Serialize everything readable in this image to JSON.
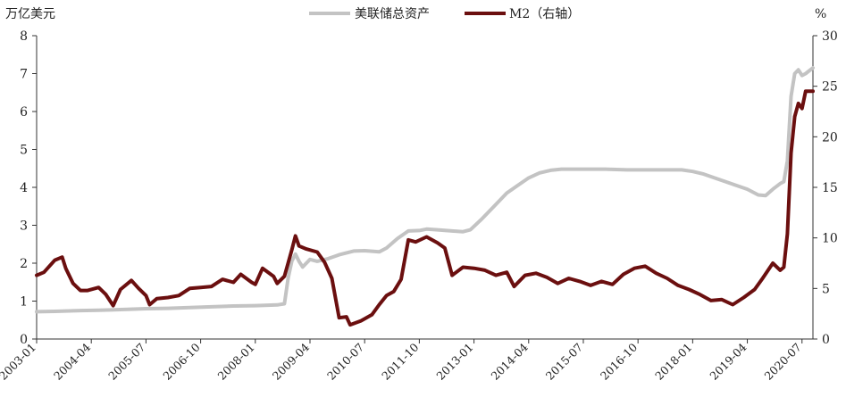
{
  "chart_data": {
    "type": "line",
    "title": "",
    "left_axis": {
      "unit_label": "万亿美元",
      "ylim": [
        0,
        8
      ],
      "ticks": [
        "0",
        "1",
        "2",
        "3",
        "4",
        "5",
        "6",
        "7",
        "8"
      ]
    },
    "right_axis": {
      "unit_label": "%",
      "ylim": [
        0,
        30
      ],
      "ticks": [
        "0",
        "5",
        "10",
        "15",
        "20",
        "25",
        "30"
      ]
    },
    "x_ticks": [
      "2003-01",
      "2004-04",
      "2005-07",
      "2006-10",
      "2008-01",
      "2009-04",
      "2010-07",
      "2011-10",
      "2013-01",
      "2014-04",
      "2015-07",
      "2016-10",
      "2018-01",
      "2019-04",
      "2020-07"
    ],
    "x_range": [
      "2003-01",
      "2020-10"
    ],
    "grid": false,
    "legend_position": "top-center",
    "colors": {
      "fed": "#c3c3c3",
      "m2": "#6b0f0f"
    },
    "series": [
      {
        "name": "美联储总资产",
        "axis": "left",
        "points": [
          [
            "2003-01",
            0.72
          ],
          [
            "2003-06",
            0.73
          ],
          [
            "2004-01",
            0.75
          ],
          [
            "2004-06",
            0.76
          ],
          [
            "2005-01",
            0.78
          ],
          [
            "2005-07",
            0.8
          ],
          [
            "2006-01",
            0.81
          ],
          [
            "2006-07",
            0.83
          ],
          [
            "2007-01",
            0.85
          ],
          [
            "2007-07",
            0.87
          ],
          [
            "2008-01",
            0.88
          ],
          [
            "2008-07",
            0.9
          ],
          [
            "2008-09",
            0.93
          ],
          [
            "2008-10",
            1.6
          ],
          [
            "2008-11",
            2.05
          ],
          [
            "2008-12",
            2.24
          ],
          [
            "2009-01",
            2.05
          ],
          [
            "2009-02",
            1.9
          ],
          [
            "2009-03",
            2.0
          ],
          [
            "2009-04",
            2.1
          ],
          [
            "2009-06",
            2.05
          ],
          [
            "2009-09",
            2.12
          ],
          [
            "2009-12",
            2.22
          ],
          [
            "2010-04",
            2.32
          ],
          [
            "2010-07",
            2.33
          ],
          [
            "2010-11",
            2.3
          ],
          [
            "2011-01",
            2.4
          ],
          [
            "2011-04",
            2.65
          ],
          [
            "2011-07",
            2.85
          ],
          [
            "2011-10",
            2.86
          ],
          [
            "2011-12",
            2.9
          ],
          [
            "2012-03",
            2.88
          ],
          [
            "2012-07",
            2.85
          ],
          [
            "2012-10",
            2.83
          ],
          [
            "2012-12",
            2.88
          ],
          [
            "2013-03",
            3.15
          ],
          [
            "2013-07",
            3.55
          ],
          [
            "2013-10",
            3.85
          ],
          [
            "2014-01",
            4.05
          ],
          [
            "2014-04",
            4.25
          ],
          [
            "2014-07",
            4.38
          ],
          [
            "2014-10",
            4.45
          ],
          [
            "2015-01",
            4.48
          ],
          [
            "2015-07",
            4.48
          ],
          [
            "2016-01",
            4.48
          ],
          [
            "2016-07",
            4.46
          ],
          [
            "2017-01",
            4.46
          ],
          [
            "2017-07",
            4.46
          ],
          [
            "2017-10",
            4.46
          ],
          [
            "2018-01",
            4.42
          ],
          [
            "2018-04",
            4.35
          ],
          [
            "2018-07",
            4.25
          ],
          [
            "2018-10",
            4.15
          ],
          [
            "2019-01",
            4.05
          ],
          [
            "2019-04",
            3.95
          ],
          [
            "2019-07",
            3.8
          ],
          [
            "2019-09",
            3.78
          ],
          [
            "2019-11",
            3.95
          ],
          [
            "2020-01",
            4.1
          ],
          [
            "2020-02",
            4.15
          ],
          [
            "2020-03",
            4.7
          ],
          [
            "2020-04",
            6.4
          ],
          [
            "2020-05",
            7.0
          ],
          [
            "2020-06",
            7.1
          ],
          [
            "2020-07",
            6.95
          ],
          [
            "2020-08",
            7.0
          ],
          [
            "2020-10",
            7.15
          ]
        ]
      },
      {
        "name": "M2（右轴）",
        "axis": "right",
        "points": [
          [
            "2003-01",
            6.3
          ],
          [
            "2003-03",
            6.6
          ],
          [
            "2003-06",
            7.8
          ],
          [
            "2003-08",
            8.1
          ],
          [
            "2003-09",
            7.0
          ],
          [
            "2003-11",
            5.5
          ],
          [
            "2004-01",
            4.8
          ],
          [
            "2004-03",
            4.8
          ],
          [
            "2004-06",
            5.1
          ],
          [
            "2004-08",
            4.4
          ],
          [
            "2004-10",
            3.3
          ],
          [
            "2004-12",
            4.9
          ],
          [
            "2005-03",
            5.8
          ],
          [
            "2005-05",
            5.0
          ],
          [
            "2005-07",
            4.3
          ],
          [
            "2005-08",
            3.4
          ],
          [
            "2005-10",
            4.0
          ],
          [
            "2006-01",
            4.1
          ],
          [
            "2006-04",
            4.3
          ],
          [
            "2006-07",
            5.0
          ],
          [
            "2006-10",
            5.1
          ],
          [
            "2007-01",
            5.2
          ],
          [
            "2007-04",
            5.9
          ],
          [
            "2007-07",
            5.6
          ],
          [
            "2007-09",
            6.4
          ],
          [
            "2007-12",
            5.6
          ],
          [
            "2008-01",
            5.4
          ],
          [
            "2008-03",
            7.0
          ],
          [
            "2008-06",
            6.2
          ],
          [
            "2008-07",
            5.5
          ],
          [
            "2008-09",
            6.2
          ],
          [
            "2008-10",
            7.5
          ],
          [
            "2008-11",
            8.8
          ],
          [
            "2008-12",
            10.2
          ],
          [
            "2009-01",
            9.2
          ],
          [
            "2009-03",
            8.9
          ],
          [
            "2009-06",
            8.6
          ],
          [
            "2009-08",
            7.6
          ],
          [
            "2009-10",
            6.0
          ],
          [
            "2009-12",
            2.1
          ],
          [
            "2010-02",
            2.2
          ],
          [
            "2010-03",
            1.4
          ],
          [
            "2010-06",
            1.8
          ],
          [
            "2010-09",
            2.4
          ],
          [
            "2010-11",
            3.4
          ],
          [
            "2011-01",
            4.3
          ],
          [
            "2011-03",
            4.7
          ],
          [
            "2011-05",
            5.9
          ],
          [
            "2011-07",
            9.8
          ],
          [
            "2011-09",
            9.6
          ],
          [
            "2011-12",
            10.1
          ],
          [
            "2012-03",
            9.5
          ],
          [
            "2012-05",
            9.0
          ],
          [
            "2012-07",
            6.3
          ],
          [
            "2012-10",
            7.1
          ],
          [
            "2013-01",
            7.0
          ],
          [
            "2013-04",
            6.8
          ],
          [
            "2013-07",
            6.3
          ],
          [
            "2013-10",
            6.6
          ],
          [
            "2013-12",
            5.2
          ],
          [
            "2014-03",
            6.3
          ],
          [
            "2014-06",
            6.5
          ],
          [
            "2014-09",
            6.1
          ],
          [
            "2014-12",
            5.5
          ],
          [
            "2015-03",
            6.0
          ],
          [
            "2015-06",
            5.7
          ],
          [
            "2015-09",
            5.3
          ],
          [
            "2015-12",
            5.7
          ],
          [
            "2016-03",
            5.4
          ],
          [
            "2016-06",
            6.4
          ],
          [
            "2016-09",
            7.0
          ],
          [
            "2016-12",
            7.2
          ],
          [
            "2017-03",
            6.5
          ],
          [
            "2017-06",
            6.0
          ],
          [
            "2017-09",
            5.3
          ],
          [
            "2017-12",
            4.9
          ],
          [
            "2018-03",
            4.4
          ],
          [
            "2018-06",
            3.8
          ],
          [
            "2018-09",
            3.9
          ],
          [
            "2018-12",
            3.4
          ],
          [
            "2019-03",
            4.1
          ],
          [
            "2019-06",
            4.9
          ],
          [
            "2019-08",
            5.9
          ],
          [
            "2019-11",
            7.5
          ],
          [
            "2020-01",
            6.8
          ],
          [
            "2020-02",
            7.1
          ],
          [
            "2020-03",
            10.4
          ],
          [
            "2020-04",
            18.4
          ],
          [
            "2020-05",
            22.0
          ],
          [
            "2020-06",
            23.3
          ],
          [
            "2020-07",
            22.8
          ],
          [
            "2020-08",
            24.5
          ],
          [
            "2020-10",
            24.5
          ]
        ]
      }
    ]
  }
}
